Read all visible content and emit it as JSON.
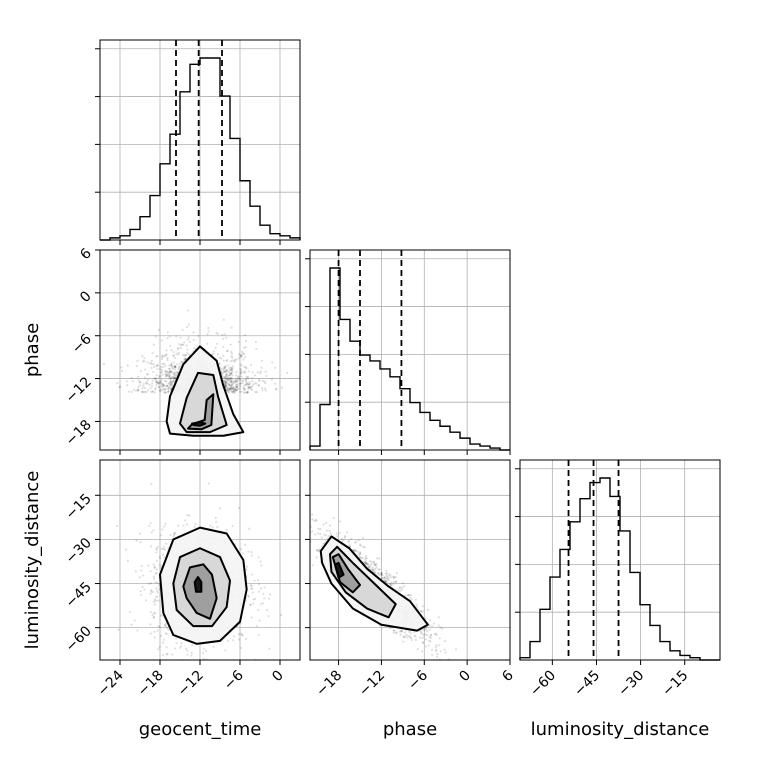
{
  "chart_data": {
    "type": "corner",
    "parameters": [
      "geocent_time",
      "phase",
      "luminosity_distance"
    ],
    "ranges": {
      "geocent_time": [
        -27,
        3
      ],
      "phase": [
        -22,
        6
      ],
      "luminosity_distance": [
        -71,
        -3
      ]
    },
    "ticks": {
      "geocent_time": [
        "−24",
        "−18",
        "−12",
        "−6",
        "0"
      ],
      "phase": [
        "−18",
        "−12",
        "−6",
        "0",
        "6"
      ],
      "luminosity_distance": [
        "−60",
        "−45",
        "−30",
        "−15"
      ]
    },
    "quantiles": {
      "geocent_time": [
        -15.6,
        -12.2,
        -8.7
      ],
      "phase": [
        -18.0,
        -15.0,
        -9.2
      ],
      "luminosity_distance": [
        -54.5,
        -46.0,
        -37.5
      ]
    },
    "marginals": {
      "geocent_time": {
        "edges": [
          -27,
          -25.5,
          -24,
          -22.5,
          -21,
          -19.5,
          -18,
          -16.5,
          -15,
          -13.5,
          -12,
          -10.5,
          -9,
          -7.5,
          -6,
          -4.5,
          -3,
          -1.5,
          0,
          1.5,
          3
        ],
        "counts": [
          0,
          1,
          2,
          5,
          11,
          21,
          36,
          50,
          70,
          83,
          86,
          86,
          68,
          48,
          28,
          16,
          7,
          3,
          2,
          1
        ]
      },
      "phase": {
        "edges": [
          -22,
          -20.6,
          -19.2,
          -17.8,
          -16.4,
          -15,
          -13.6,
          -12.2,
          -10.8,
          -9.4,
          -8,
          -6.6,
          -5.2,
          -3.8,
          -2.4,
          -1,
          0.4,
          1.8,
          3.2,
          4.6,
          6
        ],
        "counts": [
          2,
          23,
          92,
          66,
          55,
          48,
          45,
          41,
          37,
          31,
          24,
          19,
          15,
          12,
          9,
          6,
          3,
          2,
          1,
          0
        ]
      },
      "luminosity_distance": {
        "edges": [
          -71,
          -67.6,
          -64.2,
          -60.8,
          -57.4,
          -54,
          -50.6,
          -47.2,
          -43.8,
          -40.4,
          -37,
          -33.6,
          -30.2,
          -26.8,
          -23.4,
          -20,
          -16.6,
          -13.2,
          -9.8,
          -6.4,
          -3
        ],
        "counts": [
          1,
          8,
          22,
          36,
          48,
          60,
          70,
          77,
          79,
          71,
          56,
          38,
          24,
          15,
          8,
          4,
          2,
          1,
          0,
          0
        ]
      }
    },
    "pairs": [
      {
        "x": "geocent_time",
        "y": "phase",
        "center": [
          -12,
          -14
        ],
        "spread": [
          3.6,
          3.2
        ],
        "contours": [
          [
            [
              -17,
              -18
            ],
            [
              -16.5,
              -14.5
            ],
            [
              -14.5,
              -10
            ],
            [
              -12,
              -7.5
            ],
            [
              -9.5,
              -9.5
            ],
            [
              -8.5,
              -13
            ],
            [
              -7,
              -17
            ],
            [
              -5.5,
              -19.5
            ],
            [
              -8.5,
              -20
            ],
            [
              -13,
              -20
            ],
            [
              -16.5,
              -19.7
            ]
          ],
          [
            [
              -15,
              -18.3
            ],
            [
              -14,
              -14.7
            ],
            [
              -12.3,
              -11.2
            ],
            [
              -10,
              -11.5
            ],
            [
              -9.3,
              -14.5
            ],
            [
              -8,
              -18.5
            ],
            [
              -10.5,
              -19.5
            ],
            [
              -14,
              -19.5
            ]
          ],
          [
            [
              -13.2,
              -18.4
            ],
            [
              -11.3,
              -17.8
            ],
            [
              -11,
              -15
            ],
            [
              -10,
              -14.2
            ],
            [
              -10.3,
              -18.5
            ],
            [
              -11.8,
              -19.1
            ],
            [
              -13.8,
              -19
            ]
          ],
          [
            [
              -13.2,
              -18.3
            ],
            [
              -12,
              -18.1
            ],
            [
              -11.2,
              -18.3
            ],
            [
              -12,
              -18.6
            ],
            [
              -13,
              -18.5
            ]
          ]
        ]
      },
      {
        "x": "geocent_time",
        "y": "luminosity_distance",
        "center": [
          -12,
          -46
        ],
        "spread": [
          3.2,
          8.5
        ],
        "contours": [
          [
            [
              -18,
              -42
            ],
            [
              -16,
              -30
            ],
            [
              -12,
              -26
            ],
            [
              -8,
              -28
            ],
            [
              -5.5,
              -37
            ],
            [
              -5,
              -47
            ],
            [
              -6,
              -58
            ],
            [
              -9,
              -64.5
            ],
            [
              -12.5,
              -65.5
            ],
            [
              -16,
              -62.5
            ],
            [
              -17.5,
              -55
            ]
          ],
          [
            [
              -16,
              -45
            ],
            [
              -15,
              -36
            ],
            [
              -12,
              -33
            ],
            [
              -9,
              -36
            ],
            [
              -7.5,
              -44
            ],
            [
              -8,
              -53
            ],
            [
              -10.2,
              -59.5
            ],
            [
              -13,
              -59.5
            ],
            [
              -15.5,
              -54
            ]
          ],
          [
            [
              -14.5,
              -46
            ],
            [
              -13.5,
              -39.5
            ],
            [
              -11.5,
              -38.5
            ],
            [
              -10.2,
              -42
            ],
            [
              -9.5,
              -50
            ],
            [
              -10.5,
              -57
            ],
            [
              -12.5,
              -55
            ],
            [
              -14,
              -50
            ]
          ],
          [
            [
              -12.8,
              -44.5
            ],
            [
              -12.3,
              -42.8
            ],
            [
              -11.8,
              -44.5
            ],
            [
              -11.8,
              -47.8
            ],
            [
              -12.6,
              -47.8
            ]
          ]
        ]
      },
      {
        "x": "phase",
        "y": "luminosity_distance",
        "center": [
          -13,
          -46
        ],
        "spread": [
          3.2,
          8
        ],
        "contours": [
          [
            [
              -20.5,
              -34
            ],
            [
              -19,
              -29
            ],
            [
              -16.5,
              -33
            ],
            [
              -14,
              -40
            ],
            [
              -11,
              -46
            ],
            [
              -8,
              -51
            ],
            [
              -5.5,
              -59
            ],
            [
              -7,
              -61
            ],
            [
              -12,
              -59
            ],
            [
              -16,
              -53.5
            ],
            [
              -19,
              -45
            ],
            [
              -20.3,
              -38
            ]
          ],
          [
            [
              -19.2,
              -35
            ],
            [
              -18.2,
              -32.5
            ],
            [
              -16,
              -38
            ],
            [
              -13,
              -45
            ],
            [
              -10,
              -52
            ],
            [
              -11,
              -56.5
            ],
            [
              -14,
              -53.5
            ],
            [
              -17,
              -48
            ],
            [
              -19,
              -41
            ]
          ],
          [
            [
              -18.8,
              -36
            ],
            [
              -18,
              -35
            ],
            [
              -16.7,
              -40
            ],
            [
              -15,
              -45.5
            ],
            [
              -16,
              -48
            ],
            [
              -17.8,
              -44.5
            ]
          ],
          [
            [
              -18.5,
              -38.5
            ],
            [
              -18,
              -38
            ],
            [
              -17.3,
              -42
            ],
            [
              -18,
              -43
            ]
          ]
        ]
      }
    ]
  }
}
